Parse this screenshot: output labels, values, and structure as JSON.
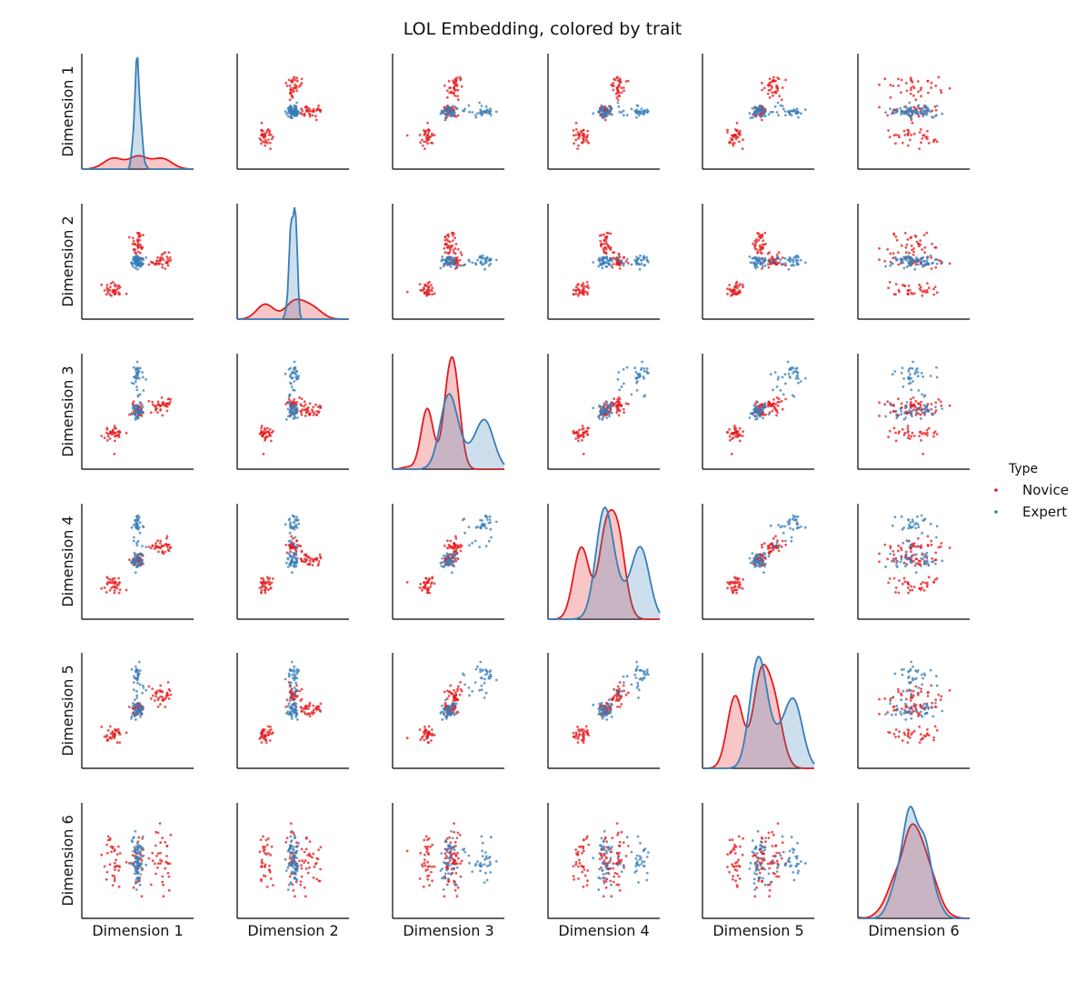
{
  "chart_data": {
    "type": "scatter",
    "subtype": "pairplot",
    "title": "LOL Embedding, colored by trait",
    "variables": [
      "Dimension 1",
      "Dimension 2",
      "Dimension 3",
      "Dimension 4",
      "Dimension 5",
      "Dimension 6"
    ],
    "diagonal": "kde",
    "grid": false,
    "legend": {
      "title": "Type",
      "placement": "right",
      "entries": [
        {
          "name": "Novice",
          "color": "#e41a1c"
        },
        {
          "name": "Expert",
          "color": "#377eb8"
        }
      ]
    },
    "hue_levels": [
      "Novice",
      "Expert"
    ],
    "colors": {
      "Novice": "#e41a1c",
      "Expert": "#377eb8"
    },
    "cluster_model": {
      "note": "values summarised as cluster centers and spreads per dimension (D1..D6), read from panels",
      "Novice": [
        {
          "center": [
            -1.3,
            -1.5,
            -1.2,
            -1.2,
            -1.2,
            0.0
          ],
          "spread": [
            0.25,
            0.25,
            0.25,
            0.25,
            0.25,
            0.8
          ],
          "weight": 0.33
        },
        {
          "center": [
            0.0,
            0.8,
            0.1,
            0.1,
            0.1,
            0.0
          ],
          "spread": [
            0.18,
            0.45,
            0.18,
            0.18,
            0.18,
            0.8
          ],
          "weight": 0.34
        },
        {
          "center": [
            1.3,
            0.0,
            0.3,
            0.8,
            0.8,
            0.0
          ],
          "spread": [
            0.28,
            0.2,
            0.2,
            0.28,
            0.28,
            0.8
          ],
          "weight": 0.33
        }
      ],
      "Expert": [
        {
          "center": [
            0.0,
            0.0,
            0.0,
            0.0,
            0.0,
            0.0
          ],
          "spread": [
            0.15,
            0.15,
            0.2,
            0.2,
            0.2,
            0.6
          ],
          "weight": 0.55
        },
        {
          "center": [
            0.0,
            0.0,
            2.0,
            2.0,
            2.0,
            0.0
          ],
          "spread": [
            0.15,
            0.15,
            0.3,
            0.3,
            0.3,
            0.6
          ],
          "weight": 0.25
        },
        {
          "center": [
            0.0,
            0.0,
            1.5,
            1.5,
            1.5,
            0.0
          ],
          "spread": [
            0.15,
            0.15,
            0.4,
            0.4,
            0.4,
            0.6
          ],
          "weight": 0.2
        }
      ]
    },
    "n_points": {
      "Novice": 110,
      "Expert": 80
    },
    "axis_ranges": {
      "Dimension 1": [
        -3,
        3
      ],
      "Dimension 2": [
        -3,
        3
      ],
      "Dimension 3": [
        -3,
        3
      ],
      "Dimension 4": [
        -3,
        3
      ],
      "Dimension 5": [
        -3,
        3
      ],
      "Dimension 6": [
        -3,
        3
      ]
    }
  }
}
